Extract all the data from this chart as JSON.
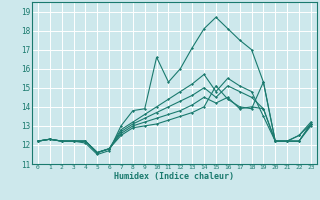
{
  "xlabel": "Humidex (Indice chaleur)",
  "xlim": [
    -0.5,
    23.5
  ],
  "ylim": [
    11,
    19.5
  ],
  "yticks": [
    11,
    12,
    13,
    14,
    15,
    16,
    17,
    18,
    19
  ],
  "xticks": [
    0,
    1,
    2,
    3,
    4,
    5,
    6,
    7,
    8,
    9,
    10,
    11,
    12,
    13,
    14,
    15,
    16,
    17,
    18,
    19,
    20,
    21,
    22,
    23
  ],
  "bg_color": "#cde8ec",
  "line_color": "#1a7a6e",
  "grid_color": "#ffffff",
  "lines": [
    [
      12.2,
      12.3,
      12.2,
      12.2,
      12.1,
      11.5,
      11.7,
      13.0,
      13.8,
      13.9,
      16.6,
      15.3,
      16.0,
      17.1,
      18.1,
      18.7,
      18.1,
      17.5,
      17.0,
      15.3,
      12.2,
      12.2,
      12.2,
      13.0
    ],
    [
      12.2,
      12.3,
      12.2,
      12.2,
      12.2,
      11.6,
      11.8,
      12.5,
      12.9,
      13.0,
      13.1,
      13.3,
      13.5,
      13.7,
      14.0,
      15.1,
      14.4,
      14.0,
      13.9,
      15.3,
      12.2,
      12.2,
      12.2,
      13.1
    ],
    [
      12.2,
      12.3,
      12.2,
      12.2,
      12.2,
      11.6,
      11.8,
      12.6,
      13.0,
      13.2,
      13.4,
      13.6,
      13.8,
      14.1,
      14.5,
      14.2,
      14.5,
      13.9,
      14.0,
      13.9,
      12.2,
      12.2,
      12.2,
      13.1
    ],
    [
      12.2,
      12.3,
      12.2,
      12.2,
      12.2,
      11.6,
      11.8,
      12.7,
      13.1,
      13.4,
      13.7,
      14.0,
      14.3,
      14.6,
      15.0,
      14.5,
      15.1,
      14.8,
      14.5,
      13.9,
      12.2,
      12.2,
      12.5,
      13.1
    ],
    [
      12.2,
      12.3,
      12.2,
      12.2,
      12.2,
      11.6,
      11.8,
      12.8,
      13.2,
      13.6,
      14.0,
      14.4,
      14.8,
      15.2,
      15.7,
      14.8,
      15.5,
      15.1,
      14.8,
      13.5,
      12.2,
      12.2,
      12.5,
      13.2
    ]
  ]
}
